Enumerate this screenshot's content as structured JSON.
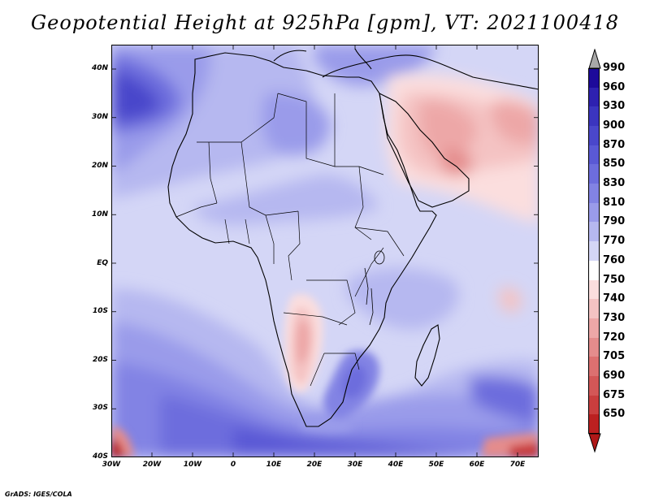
{
  "title": "Geopotential Height at 925hPa [gpm], VT: 2021100418",
  "credit": "GrADS: IGES/COLA",
  "axes": {
    "lat_labels": [
      "40N",
      "30N",
      "20N",
      "10N",
      "EQ",
      "10S",
      "20S",
      "30S",
      "40S"
    ],
    "lon_labels": [
      "30W",
      "20W",
      "10W",
      "0",
      "10E",
      "20E",
      "30E",
      "40E",
      "50E",
      "60E",
      "70E"
    ]
  },
  "colorbar": {
    "levels": [
      "990",
      "960",
      "930",
      "900",
      "870",
      "850",
      "830",
      "810",
      "790",
      "770",
      "760",
      "750",
      "740",
      "730",
      "720",
      "705",
      "690",
      "675",
      "650"
    ],
    "colors": [
      "#1d0a9a",
      "#2e21b0",
      "#3b35bf",
      "#4a47cb",
      "#5a59d5",
      "#6d6ddd",
      "#8283e4",
      "#9a9bea",
      "#b6b8f0",
      "#d4d6f6",
      "#ffffff",
      "#fbdede",
      "#f4c3c3",
      "#eda7a7",
      "#e48c8c",
      "#dc7070",
      "#d35757",
      "#c93e3e",
      "#bb2020"
    ],
    "over_color": "#a8a8a8",
    "under_color": "#b01818"
  }
}
